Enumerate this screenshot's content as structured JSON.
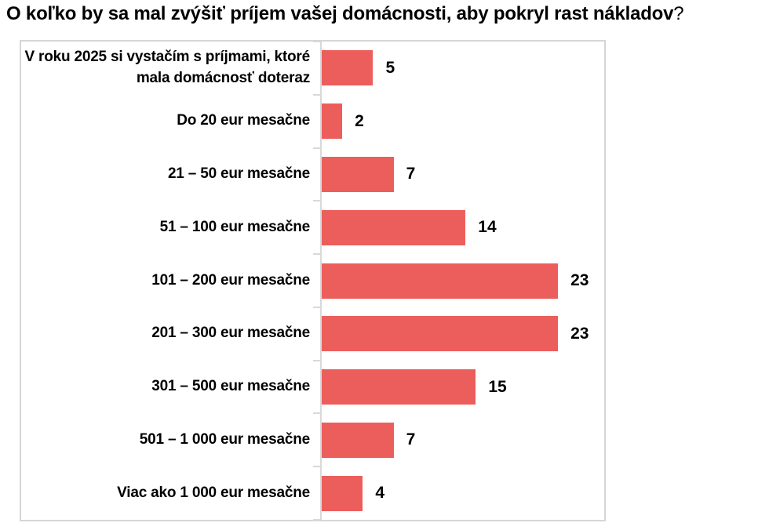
{
  "title": {
    "text": "O koľko by sa mal zvýšiť príjem vašej domácnosti, aby pokryl rast nákladov",
    "question_mark": "?"
  },
  "chart_data": {
    "type": "bar",
    "orientation": "horizontal",
    "title": "O koľko by sa mal zvýšiť príjem vašej domácnosti, aby pokryl rast nákladov?",
    "categories": [
      "V roku 2025 si vystačím s príjmami, ktoré mala domácnosť doteraz",
      "Do 20 eur mesačne",
      "21 – 50 eur mesačne",
      "51 – 100 eur mesačne",
      "101 – 200 eur mesačne",
      "201 – 300 eur mesačne",
      "301 – 500 eur mesačne",
      "501 – 1 000 eur mesačne",
      "Viac ako 1 000 eur mesačne"
    ],
    "values": [
      5,
      2,
      7,
      14,
      23,
      23,
      15,
      7,
      4
    ],
    "xlim": [
      0,
      27.5
    ],
    "bar_color": "#ec5e5b",
    "axis_color": "#d9d9d9",
    "data_labels": true,
    "legend": false,
    "grid": false
  }
}
